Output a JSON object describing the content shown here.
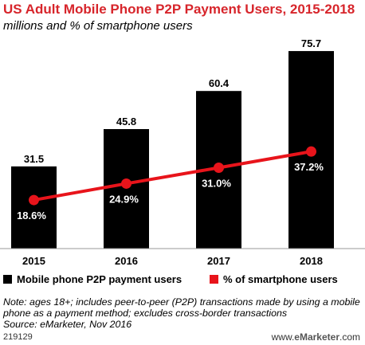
{
  "chart_data": {
    "type": "bar",
    "title": "US Adult Mobile Phone P2P Payment Users, 2015-2018",
    "subtitle": "millions and % of smartphone users",
    "categories": [
      "2015",
      "2016",
      "2017",
      "2018"
    ],
    "series": [
      {
        "name": "Mobile phone P2P payment users",
        "type": "bar",
        "values": [
          31.5,
          45.8,
          60.4,
          75.7
        ],
        "labels": [
          "31.5",
          "45.8",
          "60.4",
          "75.7"
        ],
        "color": "#000000"
      },
      {
        "name": "% of smartphone users",
        "type": "line",
        "values": [
          18.6,
          24.9,
          31.0,
          37.2
        ],
        "labels": [
          "18.6%",
          "24.9%",
          "31.0%",
          "37.2%"
        ],
        "color": "#e8141b"
      }
    ],
    "ylim": [
      0,
      80
    ],
    "line_ylim": [
      0,
      80
    ],
    "grid": false,
    "legend_position": "bottom"
  },
  "note": "Note: ages 18+; includes peer-to-peer (P2P) transactions made by using a mobile phone as a payment method; excludes cross-border transactions",
  "source": "Source: eMarketer, Nov 2016",
  "footer": {
    "id": "219129",
    "site_prefix": "www.",
    "site_brand": "eMarketer",
    "site_suffix": ".com"
  }
}
